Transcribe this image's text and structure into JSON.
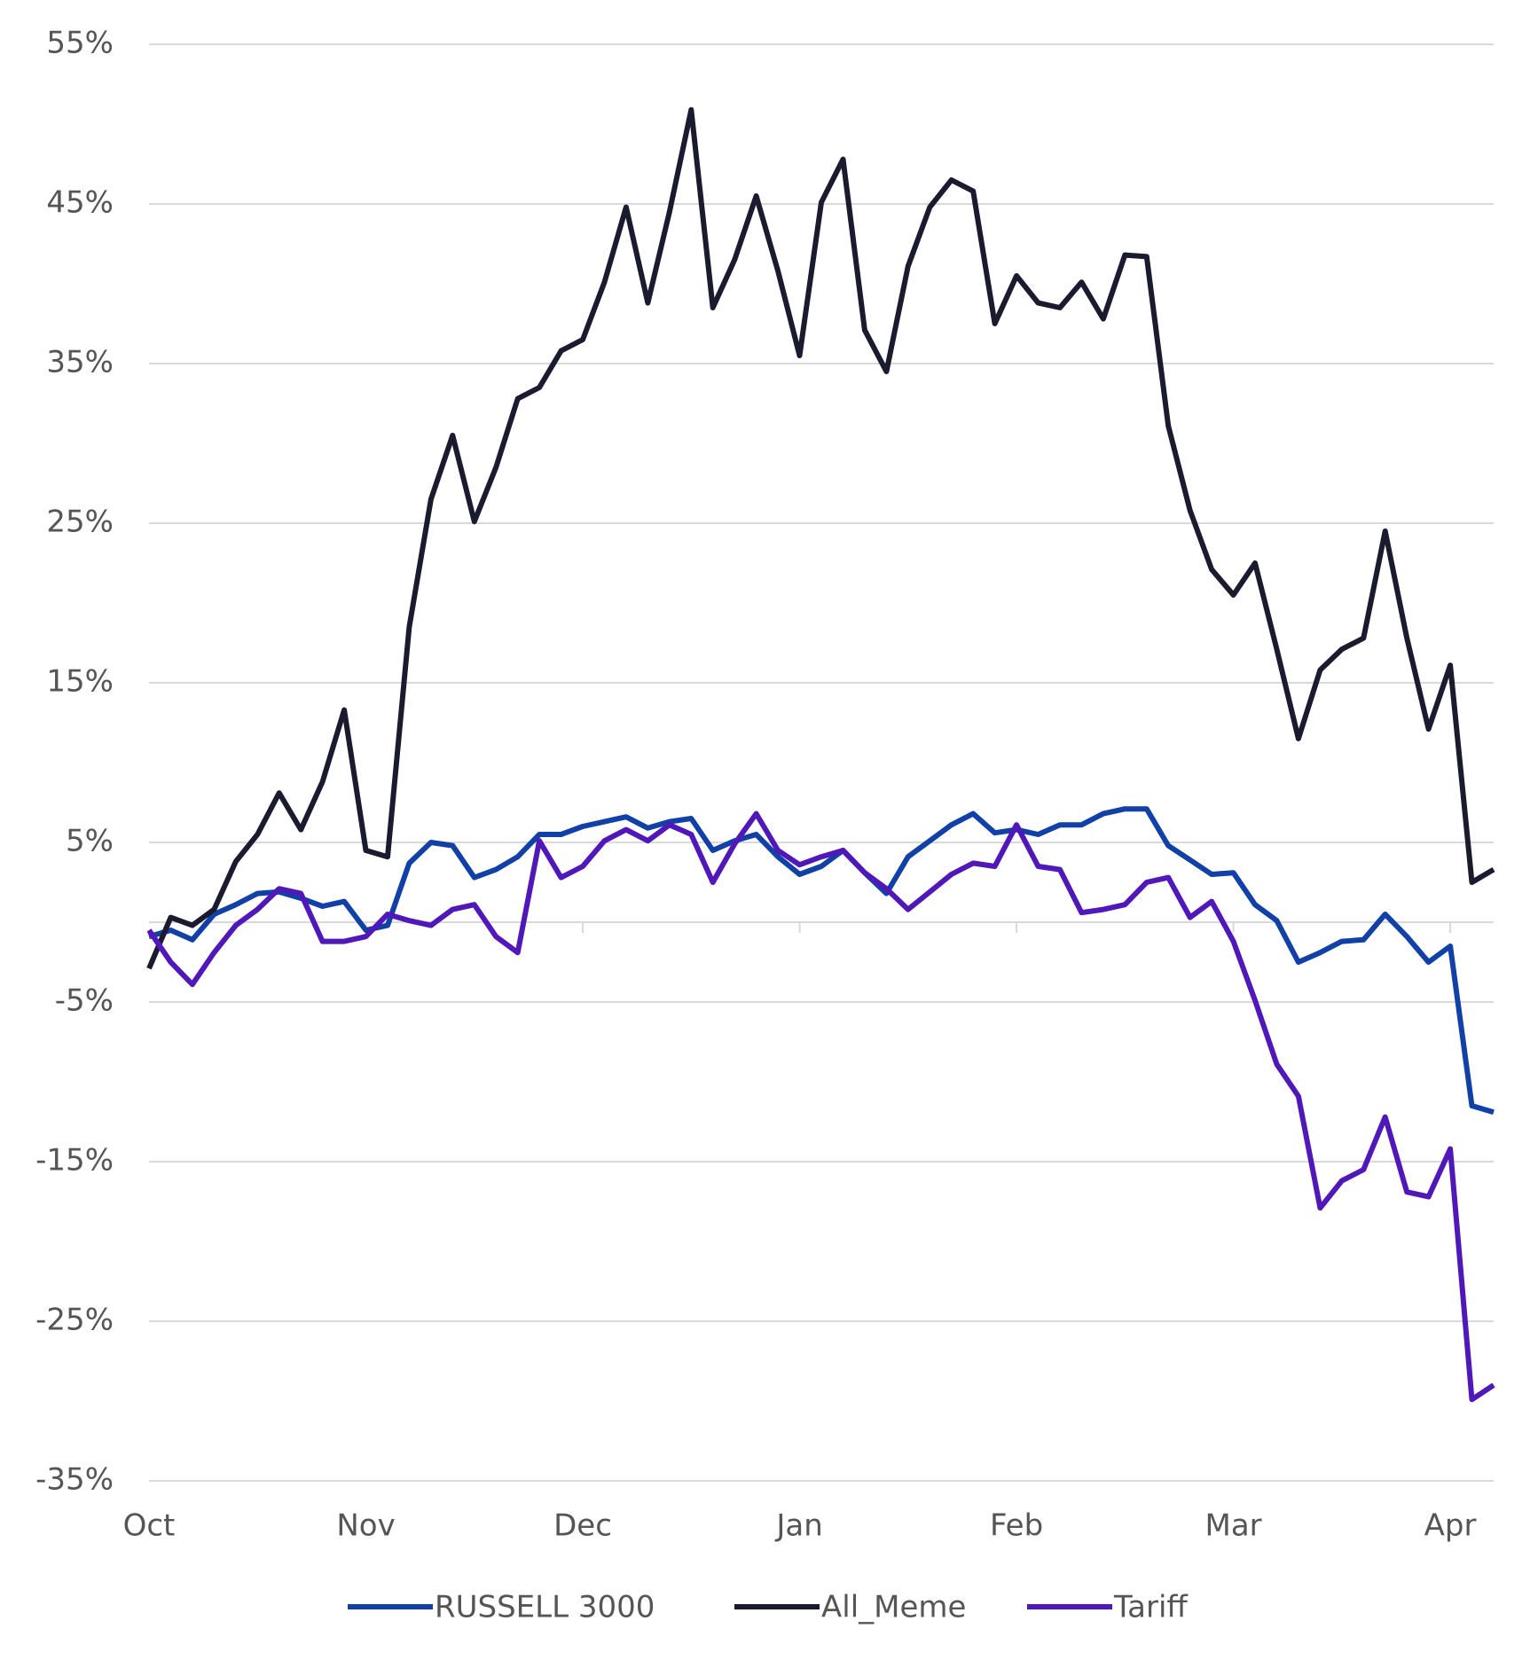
{
  "chart_data": {
    "type": "line",
    "categories": [
      "Oct",
      null,
      null,
      null,
      null,
      null,
      null,
      null,
      null,
      null,
      "Nov",
      null,
      null,
      null,
      null,
      null,
      null,
      null,
      null,
      null,
      "Dec",
      null,
      null,
      null,
      null,
      null,
      null,
      null,
      null,
      null,
      "Jan",
      null,
      null,
      null,
      null,
      null,
      null,
      null,
      null,
      null,
      "Feb",
      null,
      null,
      null,
      null,
      null,
      null,
      null,
      null,
      null,
      "Mar",
      null,
      null,
      null,
      null,
      null,
      null,
      null,
      null,
      null,
      "Apr",
      null,
      null
    ],
    "series": [
      {
        "name": "RUSSELL 3000",
        "color": "#1140a6",
        "values": [
          -0.9,
          -0.5,
          -1.1,
          0.5,
          1.1,
          1.8,
          1.9,
          1.5,
          1.0,
          1.3,
          -0.5,
          -0.2,
          3.7,
          5.0,
          4.8,
          2.8,
          3.3,
          4.1,
          5.5,
          5.5,
          6.0,
          6.3,
          6.6,
          5.9,
          6.3,
          6.5,
          4.5,
          5.1,
          5.5,
          4.1,
          3.0,
          3.5,
          4.5,
          3.1,
          1.8,
          4.1,
          5.1,
          6.1,
          6.8,
          5.6,
          5.8,
          5.5,
          6.1,
          6.1,
          6.8,
          7.1,
          7.1,
          4.8,
          3.9,
          3.0,
          3.1,
          1.1,
          0.1,
          -2.5,
          -1.9,
          -1.2,
          -1.1,
          0.5,
          -0.9,
          -2.5,
          -1.5,
          -11.5,
          -11.9
        ]
      },
      {
        "name": "All_Meme",
        "color": "#1a1b2e",
        "values": [
          -2.9,
          0.3,
          -0.2,
          0.8,
          3.8,
          5.5,
          8.1,
          5.8,
          8.8,
          13.3,
          4.5,
          4.1,
          18.5,
          26.5,
          30.5,
          25.1,
          28.5,
          32.8,
          33.5,
          35.8,
          36.5,
          40.1,
          44.8,
          38.8,
          44.5,
          50.9,
          38.5,
          41.5,
          45.5,
          40.8,
          35.5,
          45.1,
          47.8,
          37.1,
          34.5,
          41.1,
          44.8,
          46.5,
          45.8,
          37.5,
          40.5,
          38.8,
          38.5,
          40.1,
          37.8,
          41.8,
          41.7,
          31.1,
          25.8,
          22.1,
          20.5,
          22.5,
          17.1,
          11.5,
          15.8,
          17.1,
          17.8,
          24.5,
          17.8,
          12.1,
          16.1,
          2.5,
          3.3
        ]
      },
      {
        "name": "Tariff",
        "color": "#5018b8",
        "values": [
          -0.5,
          -2.5,
          -3.9,
          -1.9,
          -0.2,
          0.8,
          2.1,
          1.8,
          -1.2,
          -1.2,
          -0.9,
          0.5,
          0.1,
          -0.2,
          0.8,
          1.1,
          -0.9,
          -1.9,
          5.1,
          2.8,
          3.5,
          5.1,
          5.8,
          5.1,
          6.1,
          5.5,
          2.5,
          4.9,
          6.8,
          4.5,
          3.6,
          4.1,
          4.5,
          3.1,
          2.1,
          0.8,
          1.9,
          3.0,
          3.7,
          3.5,
          6.1,
          3.5,
          3.3,
          0.6,
          0.8,
          1.1,
          2.5,
          2.8,
          0.3,
          1.3,
          -1.2,
          -4.9,
          -8.9,
          -10.9,
          -17.9,
          -16.2,
          -15.5,
          -12.2,
          -16.9,
          -17.2,
          -14.2,
          -29.9,
          -29.0
        ]
      }
    ],
    "ylim": [
      -35,
      55
    ],
    "yticks": [
      {
        "value": 55,
        "label": "55%"
      },
      {
        "value": 45,
        "label": "45%"
      },
      {
        "value": 35,
        "label": "35%"
      },
      {
        "value": 25,
        "label": "25%"
      },
      {
        "value": 15,
        "label": "15%"
      },
      {
        "value": 5,
        "label": "5%"
      },
      {
        "value": -5,
        "label": "-5%"
      },
      {
        "value": -15,
        "label": "-15%"
      },
      {
        "value": -25,
        "label": "-25%"
      },
      {
        "value": -35,
        "label": "-35%"
      }
    ],
    "grid": true,
    "legend": "bottom"
  }
}
